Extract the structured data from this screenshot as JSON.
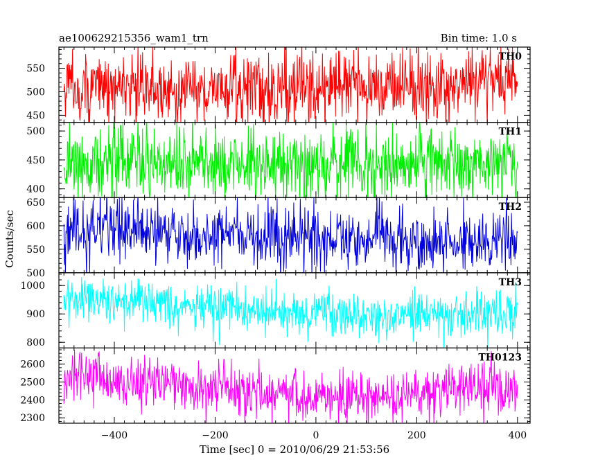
{
  "chart_data": {
    "type": "line",
    "title": "ae100629215356_wam1_trn",
    "subtitle": "Bin time: 1.0 s",
    "xlabel": "Time [sec] 0 = 2010/06/29 21:53:56",
    "ylabel": "Counts/sec",
    "xlim": [
      -510,
      425
    ],
    "x_ticks": [
      -400,
      -200,
      0,
      200,
      400
    ],
    "x_range": [
      -500,
      400
    ],
    "bin_time": 1.0,
    "grid": false,
    "panels": [
      {
        "name": "TH0",
        "color": "#ff0000",
        "ylim": [
          435,
          595
        ],
        "y_ticks": [
          450,
          500,
          550
        ],
        "mean": 515,
        "spread": 38,
        "trend": [
          [
            -500,
            510
          ],
          [
            -200,
            505
          ],
          [
            100,
            510
          ],
          [
            400,
            528
          ]
        ]
      },
      {
        "name": "TH1",
        "color": "#00ee00",
        "ylim": [
          385,
          515
        ],
        "y_ticks": [
          400,
          450,
          500
        ],
        "mean": 445,
        "spread": 32,
        "trend": [
          [
            -500,
            448
          ],
          [
            -200,
            443
          ],
          [
            100,
            441
          ],
          [
            400,
            446
          ]
        ]
      },
      {
        "name": "TH2",
        "color": "#0000dd",
        "ylim": [
          500,
          660
        ],
        "y_ticks": [
          500,
          550,
          600,
          650
        ],
        "mean": 580,
        "spread": 33,
        "trend": [
          [
            -500,
            595
          ],
          [
            -200,
            580
          ],
          [
            100,
            572
          ],
          [
            400,
            570
          ]
        ]
      },
      {
        "name": "TH3",
        "color": "#00ffff",
        "ylim": [
          780,
          1045
        ],
        "y_ticks": [
          800,
          900,
          1000
        ],
        "mean": 915,
        "spread": 40,
        "trend": [
          [
            -500,
            965
          ],
          [
            -200,
            915
          ],
          [
            100,
            895
          ],
          [
            400,
            905
          ]
        ]
      },
      {
        "name": "TH0123",
        "color": "#ff00ff",
        "ylim": [
          2270,
          2690
        ],
        "y_ticks": [
          2300,
          2400,
          2500,
          2600
        ],
        "mean": 2470,
        "spread": 75,
        "trend": [
          [
            -500,
            2540
          ],
          [
            -200,
            2460
          ],
          [
            100,
            2420
          ],
          [
            400,
            2450
          ]
        ]
      }
    ]
  }
}
